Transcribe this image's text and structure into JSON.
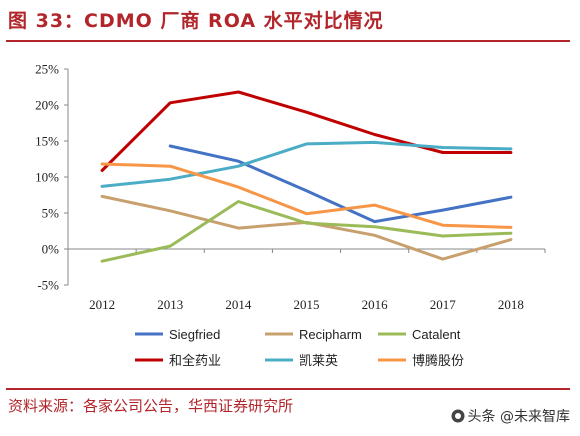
{
  "header": {
    "title": "图 33：CDMO 厂商 ROA 水平对比情况"
  },
  "footer": {
    "source": "资料来源：各家公司公告，华西证券研究所"
  },
  "watermark": {
    "text": "头条 @未来智库"
  },
  "colors": {
    "brand": "#b1252b",
    "Siegfried": "#4472c4",
    "Recipharm": "#c8a06e",
    "Catalent": "#9bbb59",
    "和全药业": "#c00000",
    "凯莱英": "#4bacc6",
    "博腾股份": "#f79646"
  },
  "chart_data": {
    "type": "line",
    "categories": [
      "2012",
      "2013",
      "2014",
      "2015",
      "2016",
      "2017",
      "2018"
    ],
    "ylim": [
      -5,
      25
    ],
    "yticks": [
      -5,
      0,
      5,
      10,
      15,
      20,
      25
    ],
    "ytick_labels": [
      "-5%",
      "0%",
      "5%",
      "10%",
      "15%",
      "20%",
      "25%"
    ],
    "grid": false,
    "legend_position": "bottom",
    "series": [
      {
        "name": "Siegfried",
        "values": [
          null,
          14.3,
          12.2,
          8.1,
          3.8,
          5.4,
          7.2
        ]
      },
      {
        "name": "Recipharm",
        "values": [
          7.3,
          5.3,
          2.9,
          3.7,
          1.9,
          -1.4,
          1.3
        ]
      },
      {
        "name": "Catalent",
        "values": [
          -1.7,
          0.4,
          6.6,
          3.6,
          3.1,
          1.8,
          2.2
        ]
      },
      {
        "name": "和全药业",
        "values": [
          10.9,
          20.3,
          21.8,
          19.0,
          15.9,
          13.4,
          13.4
        ]
      },
      {
        "name": "凯莱英",
        "values": [
          8.7,
          9.7,
          11.5,
          14.6,
          14.8,
          14.1,
          13.9
        ]
      },
      {
        "name": "博腾股份",
        "values": [
          11.8,
          11.5,
          8.6,
          4.9,
          6.1,
          3.3,
          3.0
        ]
      }
    ]
  }
}
